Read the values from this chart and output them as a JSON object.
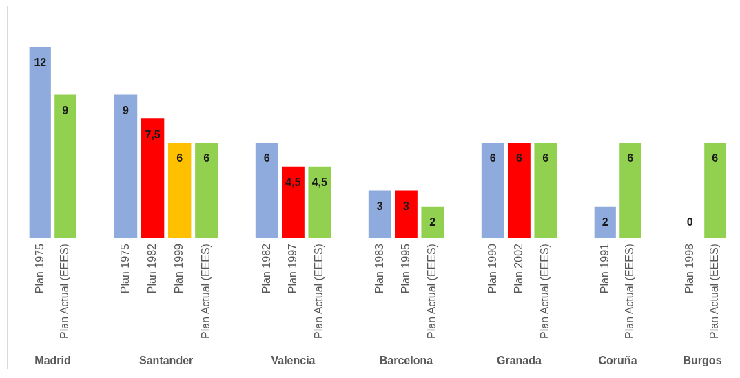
{
  "chart_data": [
    {
      "type": "bar",
      "xlabel": "Madrid",
      "categories": [
        "Plan 1975",
        "Plan Actual (EEES)"
      ],
      "values": [
        12,
        9
      ],
      "colors": [
        "#8faadc",
        "#92d050"
      ],
      "value_labels": [
        "12",
        "9"
      ],
      "tick_labels": "x"
    },
    {
      "type": "bar",
      "xlabel": "Santander",
      "categories": [
        "Plan 1975",
        "Plan 1982",
        "Plan 1999",
        "Plan Actual (EEES)"
      ],
      "values": [
        9,
        7.5,
        6,
        6
      ],
      "colors": [
        "#8faadc",
        "#ff0000",
        "#ffc000",
        "#92d050"
      ],
      "value_labels": [
        "9",
        "7,5",
        "6",
        "6"
      ],
      "tick_labels": "x"
    },
    {
      "type": "bar",
      "xlabel": "Valencia",
      "categories": [
        "Plan 1982",
        "Plan 1997",
        "Plan Actual (EEES)"
      ],
      "values": [
        6,
        4.5,
        4.5
      ],
      "colors": [
        "#8faadc",
        "#ff0000",
        "#92d050"
      ],
      "value_labels": [
        "6",
        "4,5",
        "4,5"
      ],
      "tick_labels": "x"
    },
    {
      "type": "bar",
      "xlabel": "Barcelona",
      "categories": [
        "Plan 1983",
        "Plan 1995",
        "Plan Actual (EEES)"
      ],
      "values": [
        3,
        3,
        2
      ],
      "colors": [
        "#8faadc",
        "#ff0000",
        "#92d050"
      ],
      "value_labels": [
        "3",
        "3",
        "2"
      ],
      "tick_labels": "x"
    },
    {
      "type": "bar",
      "xlabel": "Granada",
      "categories": [
        "Plan 1990",
        "Plan 2002",
        "Plan Actual (EEES)"
      ],
      "values": [
        6,
        6,
        6
      ],
      "colors": [
        "#8faadc",
        "#ff0000",
        "#92d050"
      ],
      "value_labels": [
        "6",
        "6",
        "6"
      ],
      "tick_labels": "x"
    },
    {
      "type": "bar",
      "xlabel": "Coruña",
      "categories": [
        "Plan 1991",
        "Plan Actual (EEES)"
      ],
      "values": [
        2,
        6
      ],
      "colors": [
        "#8faadc",
        "#92d050"
      ],
      "value_labels": [
        "2",
        "6"
      ],
      "tick_labels": "x"
    },
    {
      "type": "bar",
      "xlabel": "Burgos",
      "categories": [
        "Plan 1998",
        "Plan Actual (EEES)"
      ],
      "values": [
        0,
        6
      ],
      "colors": [
        "#8faadc",
        "#92d050"
      ],
      "value_labels": [
        "0",
        "6"
      ],
      "tick_labels": "x"
    }
  ]
}
